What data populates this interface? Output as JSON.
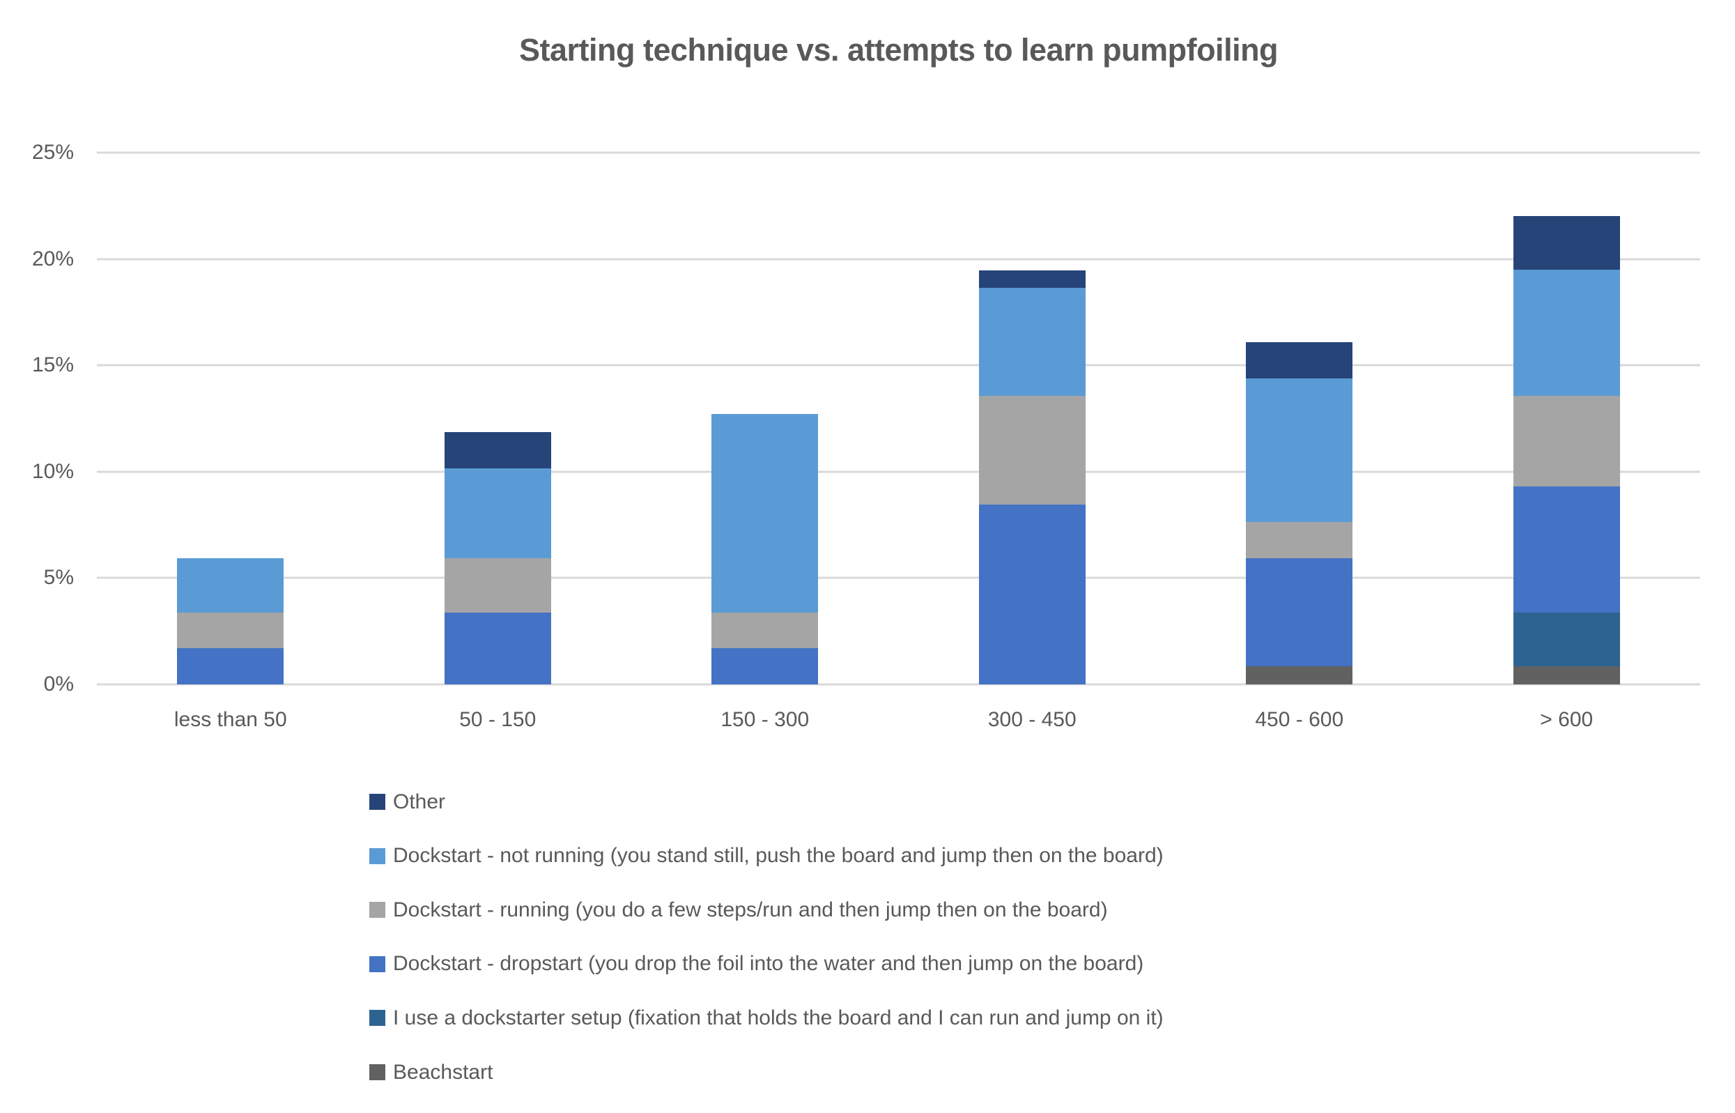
{
  "title": "Starting technique vs. attempts to learn pumpfoiling",
  "chart_data": {
    "type": "bar",
    "stacked": true,
    "title": "Starting technique vs. attempts to learn pumpfoiling",
    "categories": [
      "less than 50",
      "50 - 150",
      "150 - 300",
      "300 - 450",
      "450 - 600",
      "> 600"
    ],
    "series": [
      {
        "key": "beachstart",
        "name": "Beachstart",
        "color": "#616161",
        "values": [
          0,
          0,
          0,
          0,
          0.85,
          0.85
        ]
      },
      {
        "key": "dockstarter-setup",
        "name": "I use a dockstarter setup (fixation that holds the board and I can run and jump on it)",
        "color": "#2D6390",
        "values": [
          0,
          0,
          0,
          0,
          0,
          2.54
        ]
      },
      {
        "key": "dropstart",
        "name": "Dockstart - dropstart (you drop the foil into the water and then jump on the board)",
        "color": "#4472C4",
        "values": [
          1.69,
          3.39,
          1.69,
          8.47,
          5.08,
          5.93
        ]
      },
      {
        "key": "running",
        "name": "Dockstart - running (you do a few steps/run and then jump then on the board)",
        "color": "#A5A5A5",
        "values": [
          1.69,
          2.54,
          1.69,
          5.08,
          1.69,
          4.24
        ]
      },
      {
        "key": "not-running",
        "name": "Dockstart - not running (you stand still, push the board and jump then on the board)",
        "color": "#5B9BD5",
        "values": [
          2.54,
          4.24,
          9.32,
          5.08,
          6.78,
          5.93
        ]
      },
      {
        "key": "other",
        "name": "Other",
        "color": "#264478",
        "values": [
          0,
          1.69,
          0,
          0.85,
          1.69,
          2.54
        ]
      }
    ],
    "stack_order": "array order is bottom to top; legend shows reverse order",
    "y_ticks": [
      "0%",
      "5%",
      "10%",
      "15%",
      "20%",
      "25%"
    ],
    "ylim": [
      0,
      25
    ],
    "grid": true,
    "gridline_color": "#D9D9D9",
    "text_color": "#595959",
    "background_color": "#FFFFFF",
    "legend_position": "bottom-left"
  }
}
